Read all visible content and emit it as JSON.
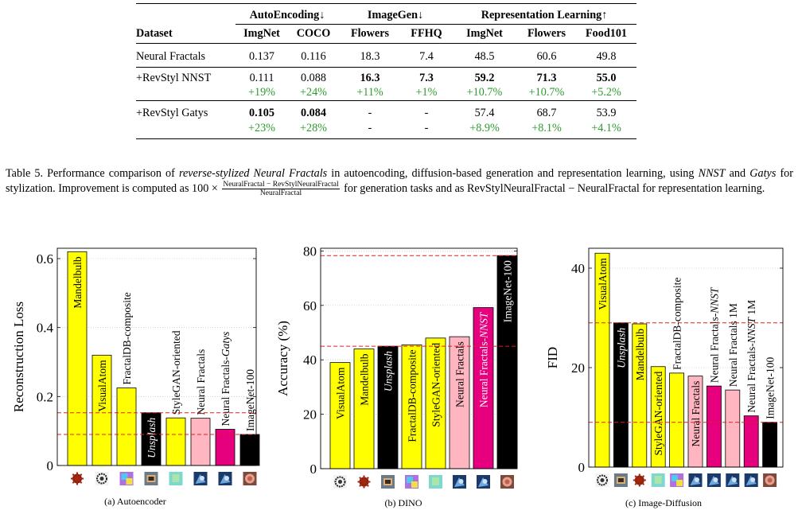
{
  "table": {
    "groups": [
      "AutoEncoding↓",
      "ImageGen↓",
      "Representation Learning↑"
    ],
    "columns": [
      "Dataset",
      "ImgNet",
      "COCO",
      "Flowers",
      "FFHQ",
      "ImgNet",
      "Flowers",
      "Food101"
    ],
    "rows": [
      {
        "name": "Neural Fractals",
        "values": [
          "0.137",
          "0.116",
          "18.3",
          "7.4",
          "48.5",
          "60.6",
          "49.8"
        ],
        "deltas": null
      },
      {
        "name": "+RevStyl NNST",
        "values": [
          "0.111",
          "0.088",
          "16.3",
          "7.3",
          "59.2",
          "71.3",
          "55.0"
        ],
        "deltas": [
          "+19%",
          "+24%",
          "+11%",
          "+1%",
          "+10.7%",
          "+10.7%",
          "+5.2%"
        ]
      },
      {
        "name": "+RevStyl Gatys",
        "values": [
          "0.105",
          "0.084",
          "-",
          "-",
          "57.4",
          "68.7",
          "53.9"
        ],
        "deltas": [
          "+23%",
          "+28%",
          "-",
          "-",
          "+8.9%",
          "+8.1%",
          "+4.1%"
        ]
      }
    ]
  },
  "caption": {
    "p1": "Table 5.  Performance comparison of ",
    "p2": "reverse-stylized Neural Fractals",
    "p3": " in autoencoding, diffusion-based generation and representation learning, using ",
    "p4": "NNST",
    "p5": " and ",
    "p6": "Gatys",
    "p7": " for stylization. Improvement is computed as 100 × ",
    "frac_num": "NeuralFractal − RevStylNeuralFractal",
    "frac_den": "NeuralFractal",
    "p8": " for generation tasks and as RevStylNeuralFractal − NeuralFractal for representation learning."
  },
  "chart_data": [
    {
      "type": "bar",
      "caption": "(a) Autoencoder",
      "ylabel": "Reconstruction Loss",
      "ylim": [
        0,
        0.63
      ],
      "yticks": [
        "0",
        "0.2",
        "0.4",
        "0.6"
      ],
      "categories": [
        "Mandelbulb",
        "VisualAtom",
        "FractalDB-composite",
        "Unsplash",
        "StyleGAN-oriented",
        "Neural Fractals",
        "Neural Fractals-Gatys",
        "ImageNet-100"
      ],
      "values": [
        0.62,
        0.32,
        0.225,
        0.153,
        0.138,
        0.137,
        0.105,
        0.09
      ],
      "colors": [
        "#ffff00",
        "#ffff00",
        "#ffff00",
        "#000000",
        "#ffff00",
        "#ffb6c1",
        "#e6007e",
        "#000000"
      ],
      "reference_lines": [
        0.153,
        0.09
      ],
      "thumbnails": [
        "mandelbulb",
        "visualatom",
        "fractaldb",
        "unsplash",
        "stylegan",
        "fractal",
        "fractal",
        "imagenet"
      ]
    },
    {
      "type": "bar",
      "caption": "(b) DINO",
      "ylabel": "Accuracy (%)",
      "ylim": [
        0,
        81
      ],
      "yticks": [
        "0",
        "20",
        "40",
        "60",
        "80"
      ],
      "categories": [
        "VisualAtom",
        "Mandelbulb",
        "Unsplash",
        "FractalDB-composite",
        "StyleGAN-oriented",
        "Neural Fractals",
        "Neural Fractals-NNST",
        "ImageNet-100"
      ],
      "values": [
        39,
        44,
        45,
        45.5,
        48,
        48.5,
        59.2,
        78.3
      ],
      "colors": [
        "#ffff00",
        "#ffff00",
        "#000000",
        "#ffff00",
        "#ffff00",
        "#ffb6c1",
        "#e6007e",
        "#000000"
      ],
      "reference_lines": [
        78.3,
        45
      ],
      "thumbnails": [
        "visualatom",
        "mandelbulb",
        "unsplash",
        "fractaldb",
        "stylegan",
        "fractal",
        "fractal",
        "imagenet"
      ]
    },
    {
      "type": "bar",
      "caption": "(c) Image-Diffusion",
      "ylabel": "FID",
      "ylim": [
        0,
        44
      ],
      "yticks": [
        "0",
        "20",
        "40"
      ],
      "categories": [
        "VisualAtom",
        "Unsplash",
        "Mandelbulb",
        "StyleGAN-oriented",
        "FractalDB-composite",
        "Neural Fractals",
        "Neural Fractals-NNST",
        "Neural Fractals 1M",
        "Neural Fractals-NNST 1M",
        "ImageNet-100"
      ],
      "values": [
        43,
        29,
        28.8,
        20.2,
        18.9,
        18.3,
        16.3,
        15.5,
        10.3,
        9
      ],
      "colors": [
        "#ffff00",
        "#000000",
        "#ffff00",
        "#ffff00",
        "#ffff00",
        "#ffb6c1",
        "#e6007e",
        "#ffb6c1",
        "#e6007e",
        "#000000"
      ],
      "reference_lines": [
        29,
        9
      ],
      "thumbnails": [
        "visualatom",
        "unsplash",
        "mandelbulb",
        "stylegan",
        "fractaldb",
        "fractal",
        "fractal",
        "fractal",
        "fractal",
        "imagenet"
      ]
    }
  ]
}
